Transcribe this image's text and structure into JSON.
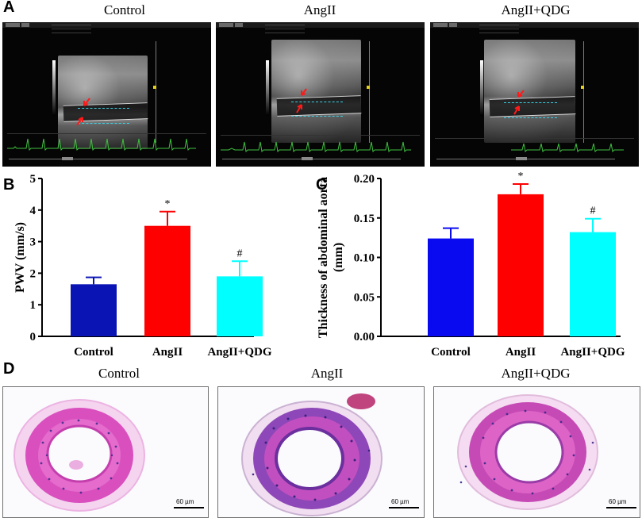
{
  "panel_a": {
    "letter": "A",
    "titles": [
      "Control",
      "AngII",
      "AngII+QDG"
    ]
  },
  "panel_d": {
    "letter": "D",
    "titles": [
      "Control",
      "AngII",
      "AngII+QDG"
    ],
    "scale_label": "60 µm"
  },
  "colors": {
    "control": "#0a14b4",
    "control_c": "#0a0af0",
    "angii": "#ff0000",
    "angii_qdg": "#00ffff",
    "he_stain": "#d94fbe",
    "nuclei": "#3b2a8a",
    "ecg": "#3ec03e"
  },
  "chart_data": [
    {
      "panel": "B",
      "type": "bar",
      "categories": [
        "Control",
        "AngII",
        "AngII+QDG"
      ],
      "values": [
        1.65,
        3.5,
        1.9
      ],
      "errors": [
        0.22,
        0.45,
        0.48
      ],
      "markers": [
        "",
        "*",
        "#"
      ],
      "ylabel": "PWV (mm/s)",
      "ylim": [
        0,
        5
      ],
      "yticks": [
        "0",
        "1",
        "2",
        "3",
        "4",
        "5"
      ],
      "ytick_values": [
        0,
        1,
        2,
        3,
        4,
        5
      ]
    },
    {
      "panel": "C",
      "type": "bar",
      "categories": [
        "Control",
        "AngII",
        "AngII+QDG"
      ],
      "values": [
        0.124,
        0.18,
        0.132
      ],
      "errors": [
        0.013,
        0.013,
        0.017
      ],
      "markers": [
        "",
        "*",
        "#"
      ],
      "ylabel": "Thickness of abdominal aorta (mm)",
      "ylabel_lines": [
        "Thickness of abdominal aorta",
        "(mm)"
      ],
      "ylim": [
        0,
        0.2
      ],
      "yticks": [
        "0.00",
        "0.05",
        "0.10",
        "0.15",
        "0.20"
      ],
      "ytick_values": [
        0,
        0.05,
        0.1,
        0.15,
        0.2
      ]
    }
  ]
}
